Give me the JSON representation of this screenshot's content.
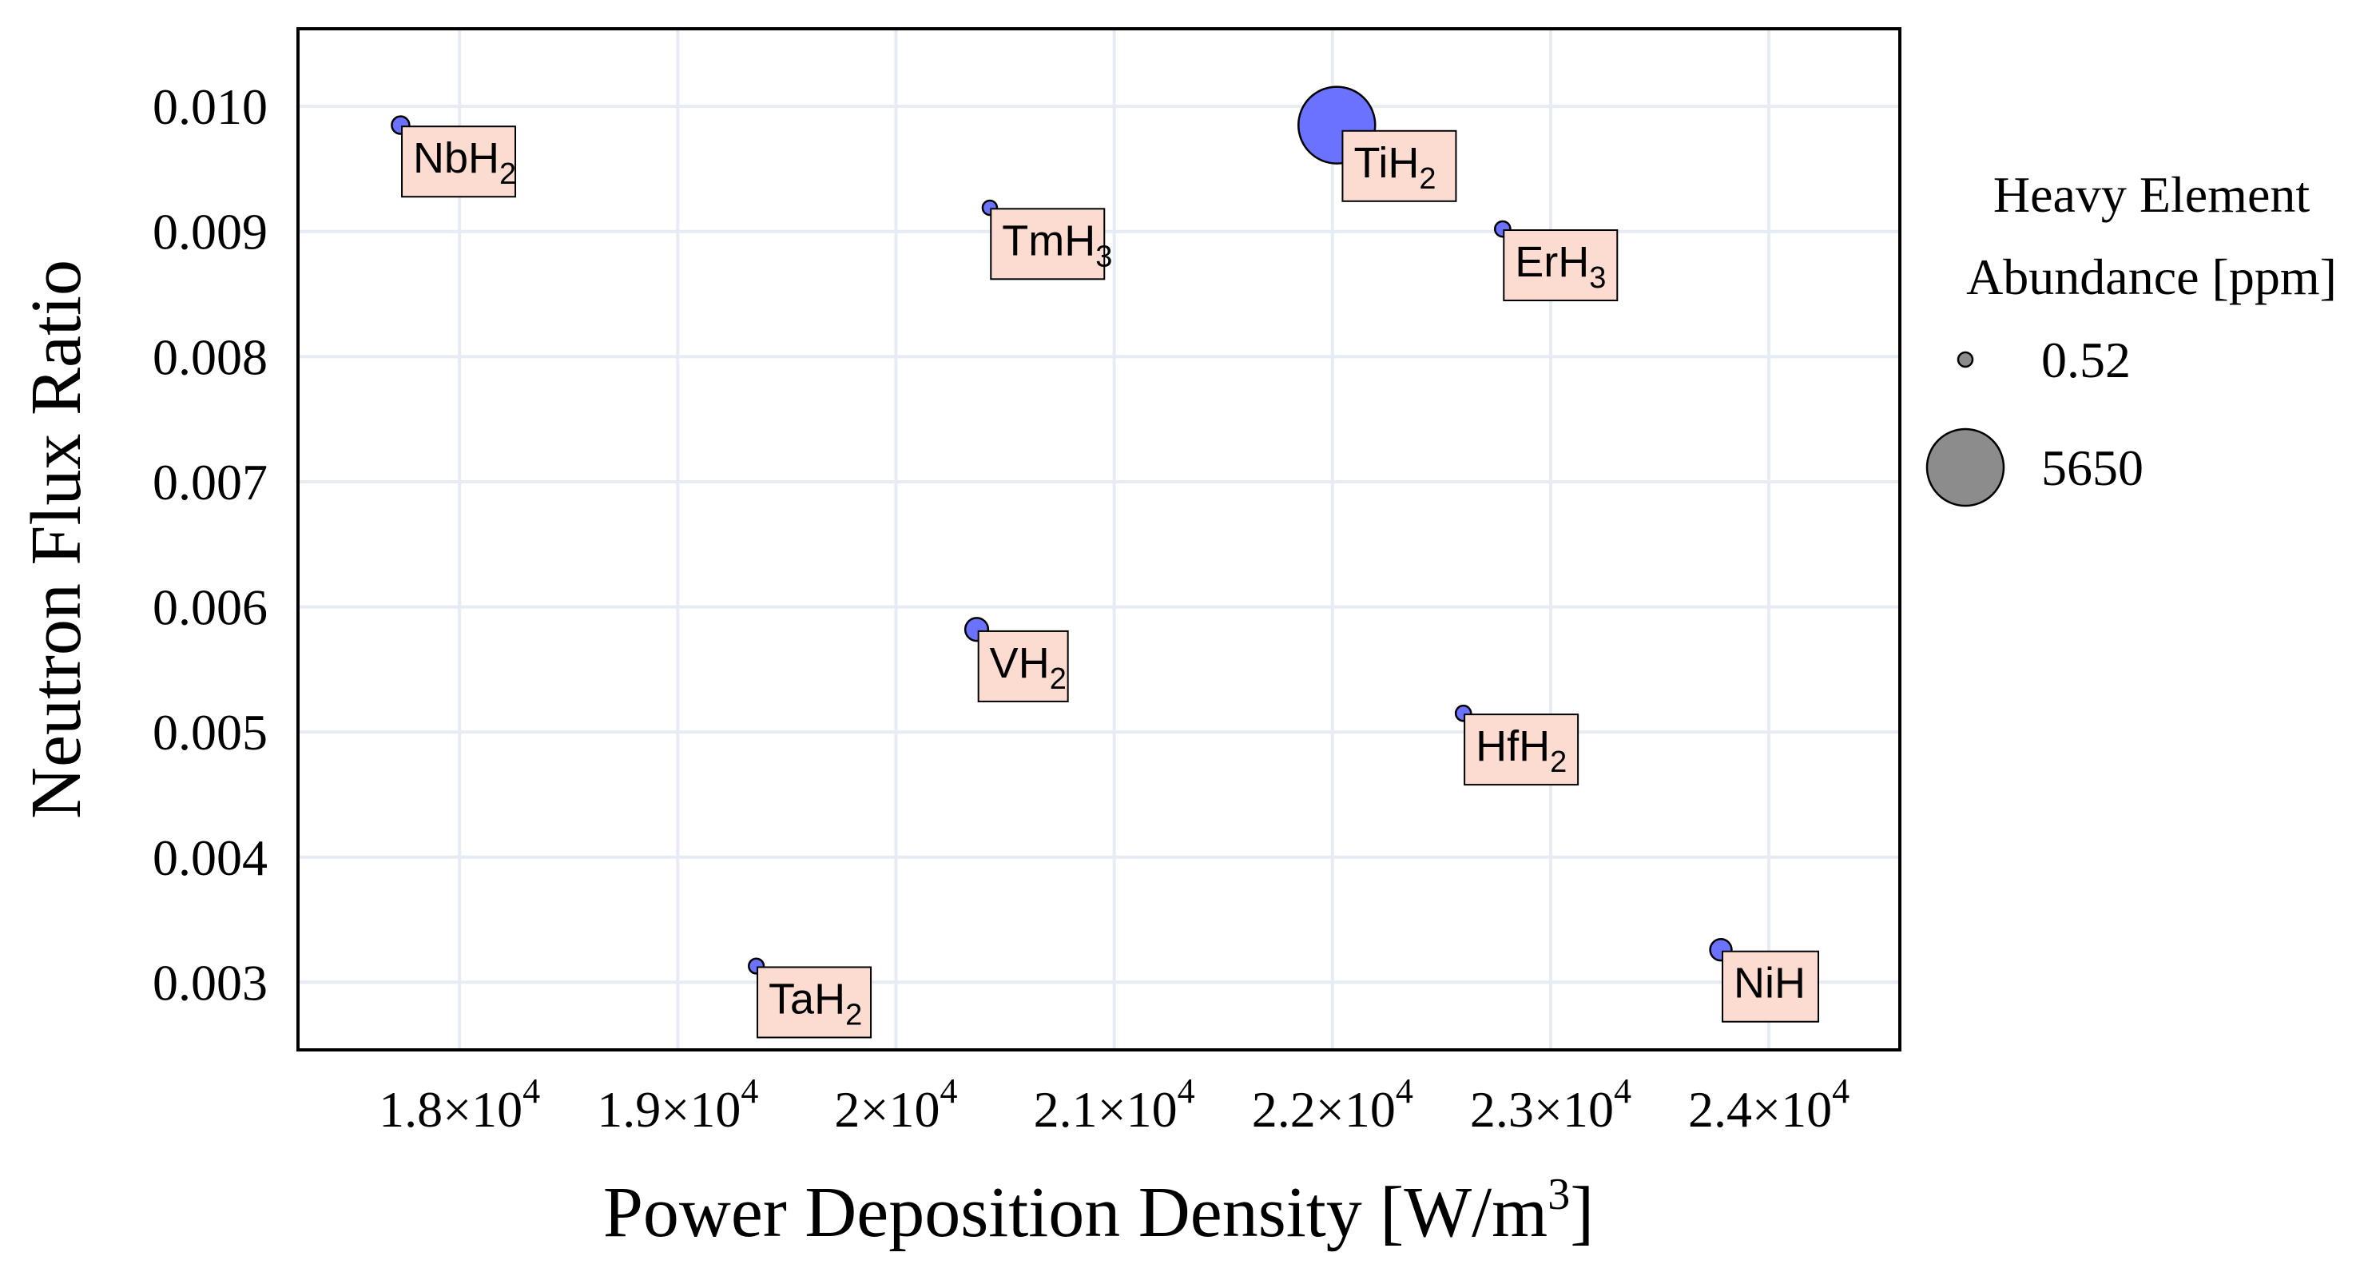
{
  "chart_data": {
    "type": "scatter",
    "title": "",
    "xlabel_main": "Power Deposition Density [W/m",
    "xlabel_sup": "3",
    "xlabel_close": "]",
    "ylabel": "Neutron Flux Ratio",
    "xlim": [
      17260,
      24600
    ],
    "ylim": [
      0.00246,
      0.01062
    ],
    "x_ticks": [
      {
        "value": 18000,
        "mantissa": "1.8",
        "exp": "4"
      },
      {
        "value": 19000,
        "mantissa": "1.9",
        "exp": "4"
      },
      {
        "value": 20000,
        "mantissa": "2",
        "exp": "4"
      },
      {
        "value": 21000,
        "mantissa": "2.1",
        "exp": "4"
      },
      {
        "value": 22000,
        "mantissa": "2.2",
        "exp": "4"
      },
      {
        "value": 23000,
        "mantissa": "2.3",
        "exp": "4"
      },
      {
        "value": 24000,
        "mantissa": "2.4",
        "exp": "4"
      }
    ],
    "y_ticks": [
      {
        "value": 0.003,
        "label": "0.003"
      },
      {
        "value": 0.004,
        "label": "0.004"
      },
      {
        "value": 0.005,
        "label": "0.005"
      },
      {
        "value": 0.006,
        "label": "0.006"
      },
      {
        "value": 0.007,
        "label": "0.007"
      },
      {
        "value": 0.008,
        "label": "0.008"
      },
      {
        "value": 0.009,
        "label": "0.009"
      },
      {
        "value": 0.01,
        "label": "0.010"
      }
    ],
    "grid": true,
    "point_color": "#6b72ff",
    "label_fill": "#fcdcd0",
    "points": [
      {
        "base": "NbH",
        "sub": "2",
        "x": 17730,
        "y": 0.00985,
        "abundance": 20
      },
      {
        "base": "TmH",
        "sub": "3",
        "x": 20430,
        "y": 0.00919,
        "abundance": 0.52
      },
      {
        "base": "TiH",
        "sub": "2",
        "x": 22020,
        "y": 0.00985,
        "abundance": 5650
      },
      {
        "base": "ErH",
        "sub": "3",
        "x": 22780,
        "y": 0.00902,
        "abundance": 3.5
      },
      {
        "base": "VH",
        "sub": "2",
        "x": 20370,
        "y": 0.00582,
        "abundance": 120
      },
      {
        "base": "HfH",
        "sub": "2",
        "x": 22600,
        "y": 0.00515,
        "abundance": 3.0
      },
      {
        "base": "TaH",
        "sub": "2",
        "x": 19360,
        "y": 0.00313,
        "abundance": 2.0
      },
      {
        "base": "NiH",
        "sub": "",
        "x": 23780,
        "y": 0.00326,
        "abundance": 84
      }
    ],
    "legend": {
      "title_line1": "Heavy Element",
      "title_line2": "Abundance [ppm]",
      "placement": "right",
      "entries": [
        {
          "label": "0.52",
          "value": 0.52
        },
        {
          "label": "5650",
          "value": 5650
        }
      ]
    }
  }
}
